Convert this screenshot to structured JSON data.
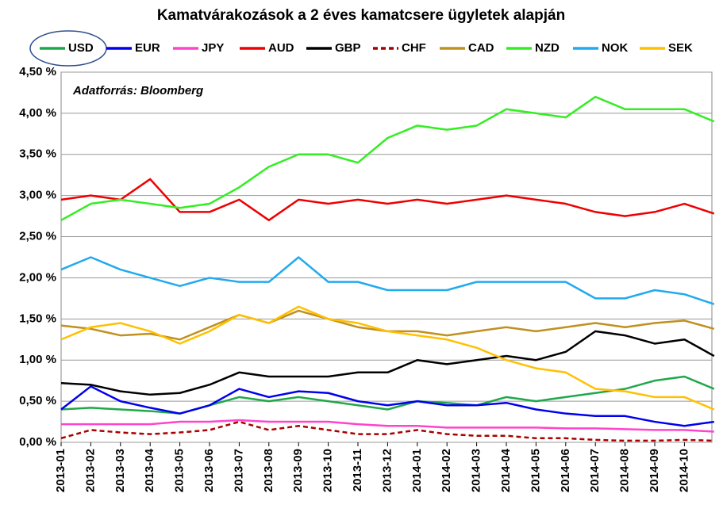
{
  "chart_data": {
    "type": "line",
    "title": "Kamatvárakozások a 2 éves kamatcsere ügyletek alapján",
    "annotation": "Adatforrás: Bloomberg",
    "categories": [
      "2013-01",
      "2013-02",
      "2013-03",
      "2013-04",
      "2013-05",
      "2013-06",
      "2013-07",
      "2013-08",
      "2013-09",
      "2013-10",
      "2013-11",
      "2013-12",
      "2014-01",
      "2014-02",
      "2014-03",
      "2014-04",
      "2014-05",
      "2014-06",
      "2014-07",
      "2014-08",
      "2014-09",
      "2014-10",
      null
    ],
    "ylim": [
      0,
      4.5
    ],
    "yticks": [
      {
        "value": 0,
        "label": "0,00 %"
      },
      {
        "value": 0.5,
        "label": "0,50 %"
      },
      {
        "value": 1,
        "label": "1,00 %"
      },
      {
        "value": 1.5,
        "label": "1,50 %"
      },
      {
        "value": 2,
        "label": "2,00 %"
      },
      {
        "value": 2.5,
        "label": "2,50 %"
      },
      {
        "value": 3,
        "label": "3,00 %"
      },
      {
        "value": 3.5,
        "label": "3,50 %"
      },
      {
        "value": 4,
        "label": "4,00 %"
      },
      {
        "value": 4.5,
        "label": "4,50 %"
      }
    ],
    "grid": true,
    "legend": "top",
    "series": [
      {
        "name": "USD",
        "color": "#1fa84a",
        "values": [
          0.4,
          0.42,
          0.4,
          0.38,
          0.35,
          0.45,
          0.55,
          0.5,
          0.55,
          0.5,
          0.45,
          0.4,
          0.5,
          0.48,
          0.45,
          0.55,
          0.5,
          0.55,
          0.6,
          0.65,
          0.75,
          0.8,
          0.65
        ]
      },
      {
        "name": "EUR",
        "color": "#0000ee",
        "values": [
          0.4,
          0.68,
          0.5,
          0.42,
          0.35,
          0.45,
          0.65,
          0.55,
          0.62,
          0.6,
          0.5,
          0.45,
          0.5,
          0.45,
          0.45,
          0.48,
          0.4,
          0.35,
          0.32,
          0.32,
          0.25,
          0.2,
          0.25
        ]
      },
      {
        "name": "JPY",
        "color": "#ff44cc",
        "values": [
          0.22,
          0.22,
          0.22,
          0.22,
          0.25,
          0.25,
          0.27,
          0.25,
          0.25,
          0.25,
          0.22,
          0.2,
          0.2,
          0.18,
          0.18,
          0.18,
          0.18,
          0.17,
          0.17,
          0.16,
          0.15,
          0.15,
          0.13
        ]
      },
      {
        "name": "AUD",
        "color": "#ee0000",
        "values": [
          2.95,
          3.0,
          2.95,
          3.2,
          2.8,
          2.8,
          2.95,
          2.7,
          2.95,
          2.9,
          2.95,
          2.9,
          2.95,
          2.9,
          2.95,
          3.0,
          2.95,
          2.9,
          2.8,
          2.75,
          2.8,
          2.9,
          2.78
        ]
      },
      {
        "name": "GBP",
        "color": "#000000",
        "values": [
          0.72,
          0.7,
          0.62,
          0.58,
          0.6,
          0.7,
          0.85,
          0.8,
          0.8,
          0.8,
          0.85,
          0.85,
          1.0,
          0.95,
          1.0,
          1.05,
          1.0,
          1.1,
          1.35,
          1.3,
          1.2,
          1.25,
          1.05
        ]
      },
      {
        "name": "CHF",
        "color": "#aa0000",
        "dashed": true,
        "values": [
          0.05,
          0.15,
          0.12,
          0.1,
          0.12,
          0.15,
          0.25,
          0.15,
          0.2,
          0.15,
          0.1,
          0.1,
          0.15,
          0.1,
          0.08,
          0.08,
          0.05,
          0.05,
          0.03,
          0.02,
          0.02,
          0.03,
          0.02
        ]
      },
      {
        "name": "CAD",
        "color": "#c09020",
        "values": [
          1.42,
          1.38,
          1.3,
          1.32,
          1.25,
          1.4,
          1.55,
          1.45,
          1.6,
          1.5,
          1.4,
          1.35,
          1.35,
          1.3,
          1.35,
          1.4,
          1.35,
          1.4,
          1.45,
          1.4,
          1.45,
          1.48,
          1.38
        ]
      },
      {
        "name": "NZD",
        "color": "#33ee22",
        "values": [
          2.7,
          2.9,
          2.95,
          2.9,
          2.85,
          2.9,
          3.1,
          3.35,
          3.5,
          3.5,
          3.4,
          3.7,
          3.85,
          3.8,
          3.85,
          4.05,
          4.0,
          3.95,
          4.2,
          4.05,
          4.05,
          4.05,
          3.9
        ]
      },
      {
        "name": "NOK",
        "color": "#22aaee",
        "values": [
          2.1,
          2.25,
          2.1,
          2.0,
          1.9,
          2.0,
          1.95,
          1.95,
          2.25,
          1.95,
          1.95,
          1.85,
          1.85,
          1.85,
          1.95,
          1.95,
          1.95,
          1.95,
          1.75,
          1.75,
          1.85,
          1.8,
          1.68
        ]
      },
      {
        "name": "SEK",
        "color": "#ffc000",
        "values": [
          1.25,
          1.4,
          1.45,
          1.35,
          1.2,
          1.35,
          1.55,
          1.45,
          1.65,
          1.5,
          1.45,
          1.35,
          1.3,
          1.25,
          1.15,
          1.0,
          0.9,
          0.85,
          0.65,
          0.62,
          0.55,
          0.55,
          0.4
        ]
      }
    ]
  }
}
